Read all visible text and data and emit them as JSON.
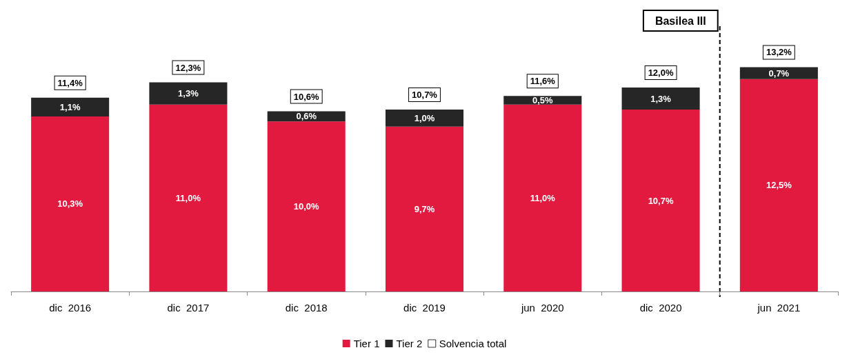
{
  "chart_data": {
    "type": "bar",
    "stacked": true,
    "categories": [
      "dic  2016",
      "dic  2017",
      "dic  2018",
      "dic  2019",
      "jun  2020",
      "dic  2020",
      "jun  2021"
    ],
    "series": [
      {
        "name": "Tier 1",
        "color": "#e31a3f",
        "values": [
          10.3,
          11.0,
          10.0,
          9.7,
          11.0,
          10.7,
          12.5
        ],
        "value_labels": [
          "10,3%",
          "11,0%",
          "10,0%",
          "9,7%",
          "11,0%",
          "10,7%",
          "12,5%"
        ]
      },
      {
        "name": "Tier 2",
        "color": "#262626",
        "values": [
          1.1,
          1.3,
          0.6,
          1.0,
          0.5,
          1.3,
          0.7
        ],
        "value_labels": [
          "1,1%",
          "1,3%",
          "0,6%",
          "1,0%",
          "0,5%",
          "1,3%",
          "0,7%"
        ]
      },
      {
        "name": "Solvencia total",
        "type": "scatter",
        "color": "#ffffff",
        "values": [
          null,
          null,
          null,
          null,
          null,
          null,
          null
        ]
      }
    ],
    "totals": [
      "11,4%",
      "12,3%",
      "10,6%",
      "10,7%",
      "11,6%",
      "12,0%",
      "13,2%"
    ],
    "annotations": [
      "Basilea III"
    ],
    "legend": "bottom",
    "grid": false
  }
}
